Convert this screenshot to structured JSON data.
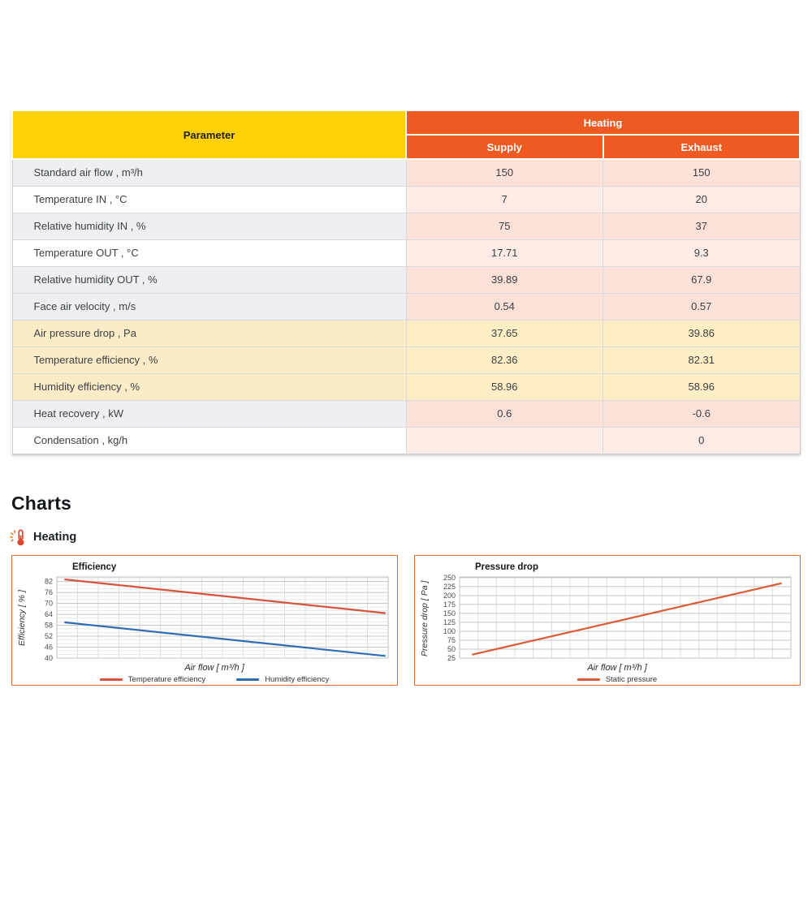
{
  "table": {
    "param_header": "Parameter",
    "group_header": "Heating",
    "col_headers": [
      "Supply",
      "Exhaust"
    ],
    "rows": [
      {
        "param": "Standard air flow , m³/h",
        "supply": "150",
        "exhaust": "150"
      },
      {
        "param": "Temperature IN , °C",
        "supply": "7",
        "exhaust": "20"
      },
      {
        "param": "Relative humidity IN , %",
        "supply": "75",
        "exhaust": "37"
      },
      {
        "param": "Temperature OUT , °C",
        "supply": "17.71",
        "exhaust": "9.3"
      },
      {
        "param": "Relative humidity OUT , %",
        "supply": "39.89",
        "exhaust": "67.9"
      },
      {
        "param": "Face air velocity , m/s",
        "supply": "0.54",
        "exhaust": "0.57"
      },
      {
        "param": "Air pressure drop , Pa",
        "supply": "37.65",
        "exhaust": "39.86"
      },
      {
        "param": "Temperature efficiency , %",
        "supply": "82.36",
        "exhaust": "82.31"
      },
      {
        "param": "Humidity efficiency , %",
        "supply": "58.96",
        "exhaust": "58.96"
      },
      {
        "param": "Heat recovery , kW",
        "supply": "0.6",
        "exhaust": "-0.6"
      },
      {
        "param": "Condensation , kg/h",
        "supply": "",
        "exhaust": "0"
      }
    ]
  },
  "charts_section": {
    "title": "Charts",
    "subtitle": "Heating"
  },
  "colors": {
    "header_yellow": "#fdd104",
    "header_orange": "#ef5a22",
    "highlight_row_yellow": "#faecc7",
    "value_cell_pink_dark": "#fce1d9",
    "value_cell_pink_light": "#fdece6",
    "row_gray": "#eeeff2",
    "chart_panel_border": "#d96e35",
    "temperature_series": "#d9523c",
    "humidity_series": "#2f6eb5",
    "static_pressure_series": "#d95b38"
  },
  "chart_data": [
    {
      "type": "line",
      "title": "Efficiency",
      "xlabel": "Air flow [ m³/h ]",
      "ylabel": "Efficiency [ % ]",
      "ylim": [
        40,
        84.5
      ],
      "yticks": [
        40,
        46,
        52,
        58,
        64,
        70,
        76,
        82
      ],
      "minor_y_step": 2,
      "x_divisions": 16,
      "grid": true,
      "legend_position": "bottom",
      "series": [
        {
          "name": "Temperature efficiency",
          "color": "#d9523c",
          "points": [
            [
              0.025,
              83.1
            ],
            [
              0.99,
              64.7
            ]
          ]
        },
        {
          "name": "Humidity efficiency",
          "color": "#2f6eb5",
          "points": [
            [
              0.025,
              59.6
            ],
            [
              0.99,
              41.2
            ]
          ]
        }
      ]
    },
    {
      "type": "line",
      "title": "Pressure drop",
      "xlabel": "Air flow [ m³/h ]",
      "ylabel": "Pressure drop [ Pa ]",
      "ylim": [
        25,
        252
      ],
      "yticks": [
        25,
        50,
        75,
        100,
        125,
        150,
        175,
        200,
        225,
        250
      ],
      "minor_y_step": null,
      "x_divisions": 18,
      "grid": true,
      "legend_position": "bottom",
      "series": [
        {
          "name": "Static pressure",
          "color": "#d95b38",
          "points": [
            [
              0.04,
              35
            ],
            [
              0.97,
              234
            ]
          ]
        }
      ]
    }
  ]
}
